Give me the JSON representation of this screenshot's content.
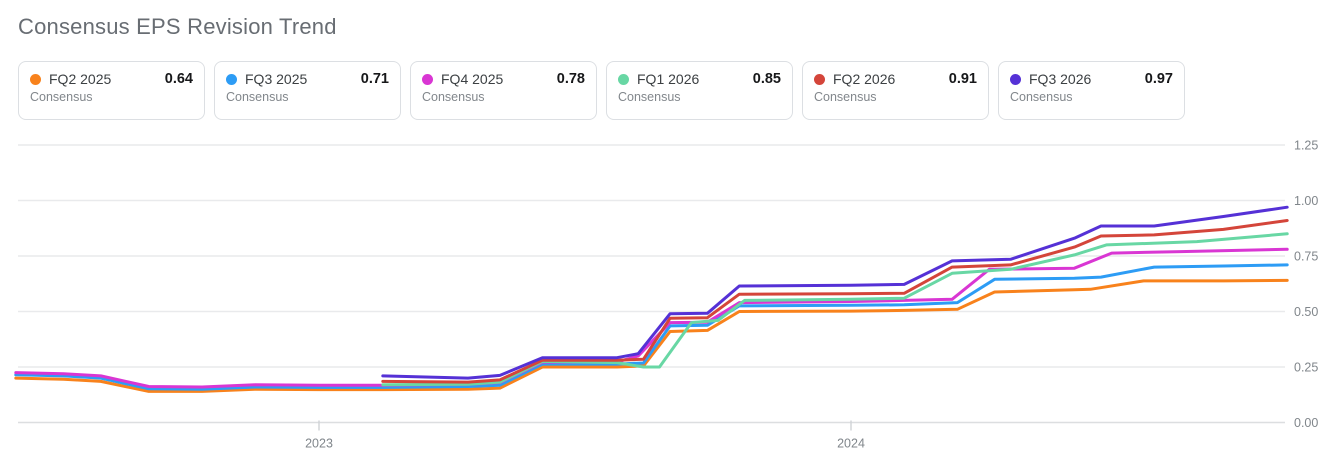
{
  "title": "Consensus EPS Revision Trend",
  "chart_data": {
    "type": "line",
    "title": "Consensus EPS Revision Trend",
    "ylabel": "",
    "xlabel": "",
    "ylim": [
      0,
      1.25
    ],
    "x_range": [
      2022.43,
      2024.82
    ],
    "grid": true,
    "legend_position": "top-cards",
    "y_ticks": [
      {
        "label": "0.00",
        "value": 0.0
      },
      {
        "label": "0.25",
        "value": 0.25
      },
      {
        "label": "0.50",
        "value": 0.5
      },
      {
        "label": "0.75",
        "value": 0.75
      },
      {
        "label": "1.00",
        "value": 1.0
      },
      {
        "label": "1.25",
        "value": 1.25
      }
    ],
    "x_ticks": [
      {
        "label": "2023",
        "value": 2023
      },
      {
        "label": "2024",
        "value": 2024
      }
    ],
    "series": [
      {
        "label": "FQ2 2025",
        "sublabel": "Consensus",
        "value": "0.64",
        "color": "#f8821c",
        "points": [
          [
            2022.43,
            0.2
          ],
          [
            2022.52,
            0.195
          ],
          [
            2022.59,
            0.185
          ],
          [
            2022.68,
            0.14
          ],
          [
            2022.78,
            0.14
          ],
          [
            2022.88,
            0.15
          ],
          [
            2023.0,
            0.148
          ],
          [
            2023.12,
            0.148
          ],
          [
            2023.28,
            0.15
          ],
          [
            2023.34,
            0.155
          ],
          [
            2023.42,
            0.25
          ],
          [
            2023.56,
            0.25
          ],
          [
            2023.61,
            0.255
          ],
          [
            2023.66,
            0.41
          ],
          [
            2023.73,
            0.415
          ],
          [
            2023.79,
            0.5
          ],
          [
            2024.0,
            0.502
          ],
          [
            2024.1,
            0.505
          ],
          [
            2024.2,
            0.51
          ],
          [
            2024.27,
            0.588
          ],
          [
            2024.42,
            0.598
          ],
          [
            2024.45,
            0.6
          ],
          [
            2024.55,
            0.638
          ],
          [
            2024.7,
            0.638
          ],
          [
            2024.82,
            0.64
          ]
        ]
      },
      {
        "label": "FQ3 2025",
        "sublabel": "Consensus",
        "value": "0.71",
        "color": "#2d9cf5",
        "points": [
          [
            2022.43,
            0.215
          ],
          [
            2022.52,
            0.21
          ],
          [
            2022.59,
            0.2
          ],
          [
            2022.68,
            0.152
          ],
          [
            2022.78,
            0.15
          ],
          [
            2022.88,
            0.16
          ],
          [
            2023.0,
            0.158
          ],
          [
            2023.12,
            0.158
          ],
          [
            2023.28,
            0.162
          ],
          [
            2023.34,
            0.168
          ],
          [
            2023.42,
            0.263
          ],
          [
            2023.56,
            0.263
          ],
          [
            2023.61,
            0.268
          ],
          [
            2023.66,
            0.435
          ],
          [
            2023.73,
            0.438
          ],
          [
            2023.79,
            0.525
          ],
          [
            2024.0,
            0.528
          ],
          [
            2024.1,
            0.53
          ],
          [
            2024.2,
            0.54
          ],
          [
            2024.27,
            0.645
          ],
          [
            2024.42,
            0.65
          ],
          [
            2024.47,
            0.655
          ],
          [
            2024.57,
            0.7
          ],
          [
            2024.7,
            0.705
          ],
          [
            2024.82,
            0.71
          ]
        ]
      },
      {
        "label": "FQ4 2025",
        "sublabel": "Consensus",
        "value": "0.78",
        "color": "#d936d3",
        "points": [
          [
            2022.43,
            0.225
          ],
          [
            2022.52,
            0.22
          ],
          [
            2022.59,
            0.21
          ],
          [
            2022.68,
            0.162
          ],
          [
            2022.78,
            0.16
          ],
          [
            2022.88,
            0.17
          ],
          [
            2023.0,
            0.168
          ],
          [
            2023.12,
            0.168
          ],
          [
            2023.28,
            0.172
          ],
          [
            2023.34,
            0.18
          ],
          [
            2023.42,
            0.272
          ],
          [
            2023.56,
            0.272
          ],
          [
            2023.6,
            0.3
          ],
          [
            2023.66,
            0.45
          ],
          [
            2023.73,
            0.452
          ],
          [
            2023.79,
            0.54
          ],
          [
            2024.0,
            0.545
          ],
          [
            2024.1,
            0.55
          ],
          [
            2024.19,
            0.555
          ],
          [
            2024.26,
            0.69
          ],
          [
            2024.42,
            0.695
          ],
          [
            2024.49,
            0.763
          ],
          [
            2024.62,
            0.77
          ],
          [
            2024.82,
            0.78
          ]
        ]
      },
      {
        "label": "FQ1 2026",
        "sublabel": "Consensus",
        "value": "0.85",
        "color": "#68d7a4",
        "points": [
          [
            2023.12,
            0.17
          ],
          [
            2023.28,
            0.172
          ],
          [
            2023.34,
            0.182
          ],
          [
            2023.42,
            0.275
          ],
          [
            2023.56,
            0.27
          ],
          [
            2023.61,
            0.25
          ],
          [
            2023.64,
            0.25
          ],
          [
            2023.7,
            0.45
          ],
          [
            2023.75,
            0.46
          ],
          [
            2023.8,
            0.55
          ],
          [
            2024.0,
            0.555
          ],
          [
            2024.1,
            0.56
          ],
          [
            2024.19,
            0.672
          ],
          [
            2024.3,
            0.69
          ],
          [
            2024.42,
            0.755
          ],
          [
            2024.48,
            0.8
          ],
          [
            2024.65,
            0.815
          ],
          [
            2024.82,
            0.85
          ]
        ]
      },
      {
        "label": "FQ2 2026",
        "sublabel": "Consensus",
        "value": "0.91",
        "color": "#d4453a",
        "points": [
          [
            2023.12,
            0.185
          ],
          [
            2023.28,
            0.182
          ],
          [
            2023.34,
            0.192
          ],
          [
            2023.42,
            0.28
          ],
          [
            2023.56,
            0.28
          ],
          [
            2023.61,
            0.285
          ],
          [
            2023.66,
            0.47
          ],
          [
            2023.73,
            0.472
          ],
          [
            2023.79,
            0.578
          ],
          [
            2024.0,
            0.58
          ],
          [
            2024.1,
            0.582
          ],
          [
            2024.19,
            0.7
          ],
          [
            2024.3,
            0.71
          ],
          [
            2024.42,
            0.79
          ],
          [
            2024.47,
            0.84
          ],
          [
            2024.57,
            0.845
          ],
          [
            2024.7,
            0.87
          ],
          [
            2024.82,
            0.91
          ]
        ]
      },
      {
        "label": "FQ3 2026",
        "sublabel": "Consensus",
        "value": "0.97",
        "color": "#5531d6",
        "points": [
          [
            2023.12,
            0.21
          ],
          [
            2023.28,
            0.2
          ],
          [
            2023.34,
            0.212
          ],
          [
            2023.42,
            0.292
          ],
          [
            2023.56,
            0.292
          ],
          [
            2023.6,
            0.31
          ],
          [
            2023.66,
            0.49
          ],
          [
            2023.73,
            0.492
          ],
          [
            2023.79,
            0.615
          ],
          [
            2024.0,
            0.618
          ],
          [
            2024.1,
            0.622
          ],
          [
            2024.19,
            0.728
          ],
          [
            2024.3,
            0.735
          ],
          [
            2024.42,
            0.83
          ],
          [
            2024.47,
            0.885
          ],
          [
            2024.57,
            0.885
          ],
          [
            2024.7,
            0.928
          ],
          [
            2024.82,
            0.97
          ]
        ]
      }
    ],
    "colors": {
      "grid": "#e9eaec",
      "zero_line": "#dcdee0",
      "tick": "#cfd2d6",
      "axis_text": "#80868b"
    }
  }
}
